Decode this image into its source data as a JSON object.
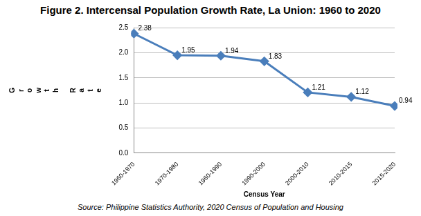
{
  "chart_data": {
    "type": "line",
    "title": "Figure 2. Intercensal Population Growth Rate, La Union: 1960 to 2020",
    "x_label": "Census Year",
    "y_label": "Growth Rate",
    "source": "Source: Philippine Statistics Authority, 2020 Census of Population and Housing",
    "categories": [
      "1960-1970",
      "1970-1980",
      "1960-1990",
      "1990-2000",
      "2000-2010",
      "2010-2015",
      "2015-2020"
    ],
    "values": [
      2.38,
      1.95,
      1.94,
      1.83,
      1.21,
      1.12,
      0.94
    ],
    "color": "#4a7ebb",
    "marker": "diamond",
    "line_style": "solid",
    "ylim": [
      0,
      2.5
    ],
    "yticks": [
      {
        "value": 0,
        "label": "0.0"
      },
      0.5,
      {
        "value": 1,
        "label": "1.0"
      },
      1.5,
      {
        "value": 2,
        "label": "2.0"
      },
      2.5
    ],
    "grid": true,
    "data_labels": true
  }
}
